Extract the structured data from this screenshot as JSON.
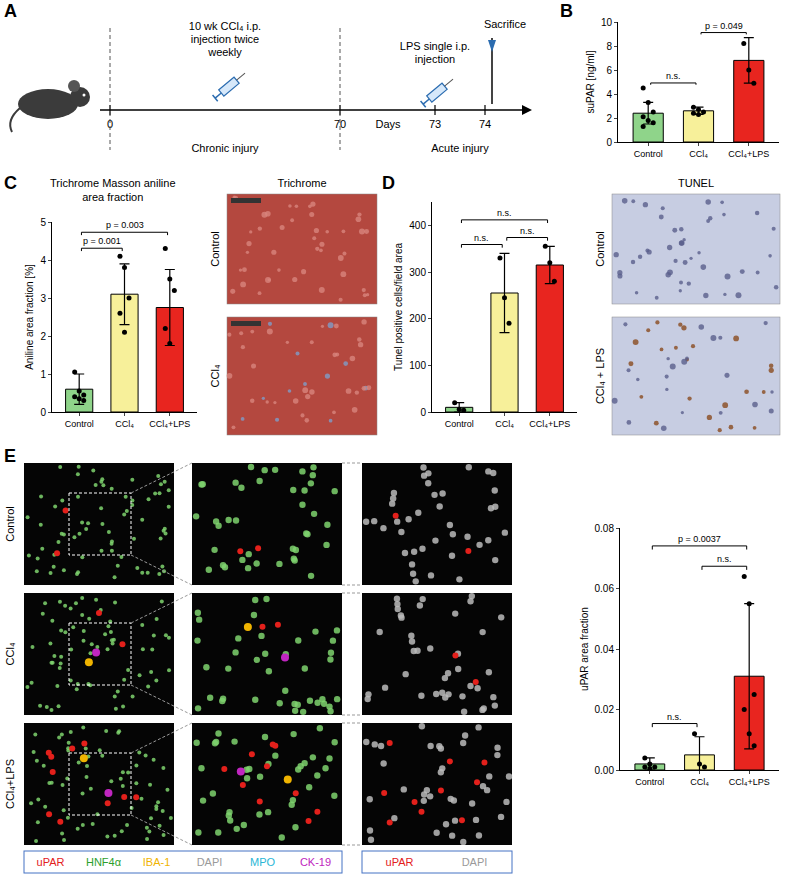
{
  "timeline": {
    "letter": "A",
    "days": [
      0,
      70,
      73,
      74
    ],
    "axis_label": "Days",
    "phases": [
      "Chronic injury",
      "Acute injury"
    ],
    "events": [
      "10 wk CCl₄ i.p. injection twice weekly",
      "LPS single i.p. injection",
      "Sacrifice"
    ]
  },
  "chart_data": [
    {
      "letter": "B",
      "type": "bar",
      "categories": [
        "Control",
        "CCl₄",
        "CCl₄+LPS"
      ],
      "values": [
        2.4,
        2.6,
        6.8
      ],
      "error": [
        0.9,
        0.3,
        1.9
      ],
      "points": [
        [
          4.5,
          3.3,
          2.5,
          2.1,
          1.8,
          1.6,
          1.3
        ],
        [
          2.9,
          2.7,
          2.5,
          2.4,
          2.3
        ],
        [
          8.2,
          6.0,
          4.9
        ]
      ],
      "colors": [
        "#8fd48a",
        "#f7f09a",
        "#e8251f"
      ],
      "y_label": "suPAR [ng/ml]",
      "ylim": [
        0,
        10
      ],
      "yticks": [
        0,
        2,
        4,
        6,
        8,
        10
      ],
      "grid": false,
      "comparisons": [
        {
          "between": [
            "Control",
            "CCl₄"
          ],
          "label": "n.s."
        },
        {
          "between": [
            "CCl₄",
            "CCl₄+LPS"
          ],
          "label": "p = 0.049"
        }
      ]
    },
    {
      "letter": "C",
      "type": "bar",
      "title": "Trichrome Masson aniline area fraction",
      "categories": [
        "Control",
        "CCl₄",
        "CCl₄+LPS"
      ],
      "values": [
        0.6,
        3.1,
        2.75
      ],
      "error": [
        0.4,
        0.8,
        1.0
      ],
      "points": [
        [
          1.05,
          0.55,
          0.45,
          0.4,
          0.35,
          0.3
        ],
        [
          4.1,
          3.8,
          3.0,
          2.6,
          2.1
        ],
        [
          4.3,
          3.5,
          3.2,
          2.2,
          1.8
        ]
      ],
      "colors": [
        "#8fd48a",
        "#f7f09a",
        "#e8251f"
      ],
      "y_label": "Aniline area fraction [%]",
      "ylim": [
        0,
        5
      ],
      "yticks": [
        0,
        1,
        2,
        3,
        4,
        5
      ],
      "grid": false,
      "comparisons": [
        {
          "between": [
            "Control",
            "CCl₄"
          ],
          "label": "p = 0.001"
        },
        {
          "between": [
            "Control",
            "CCl₄+LPS"
          ],
          "label": "p = 0.003"
        }
      ]
    },
    {
      "letter": "D",
      "type": "bar",
      "categories": [
        "Control",
        "CCl₄",
        "CCl₄+LPS"
      ],
      "values": [
        10,
        255,
        315
      ],
      "error": [
        10,
        85,
        40
      ],
      "points": [
        [
          20,
          6,
          4
        ],
        [
          330,
          245,
          190
        ],
        [
          355,
          320,
          280
        ]
      ],
      "colors": [
        "#8fd48a",
        "#f7f09a",
        "#e8251f"
      ],
      "y_label": "Tunel positive cells/field area",
      "ylim": [
        0,
        450
      ],
      "yticks": [
        0,
        100,
        200,
        300,
        400
      ],
      "grid": false,
      "comparisons": [
        {
          "between": [
            "Control",
            "CCl₄"
          ],
          "label": "n.s."
        },
        {
          "between": [
            "CCl₄",
            "CCl₄+LPS"
          ],
          "label": "n.s."
        },
        {
          "between": [
            "Control",
            "CCl₄+LPS"
          ],
          "label": "n.s."
        }
      ]
    },
    {
      "letter": "E",
      "type": "bar",
      "categories": [
        "Control",
        "CCl₄",
        "CCl₄+LPS"
      ],
      "values": [
        0.002,
        0.005,
        0.031
      ],
      "error": [
        0.002,
        0.006,
        0.024
      ],
      "points": [
        [
          0.004,
          0.002,
          0.001,
          0.001,
          0.0005
        ],
        [
          0.012,
          0.002,
          0.001
        ],
        [
          0.064,
          0.055,
          0.025,
          0.02,
          0.012,
          0.008
        ]
      ],
      "colors": [
        "#8fd48a",
        "#f7f09a",
        "#e8251f"
      ],
      "y_label": "uPAR area fraction",
      "ylim": [
        0,
        0.08
      ],
      "yticks": [
        {
          "value": 0,
          "label": "0.00"
        },
        {
          "value": 0.02,
          "label": "0.02"
        },
        {
          "value": 0.04,
          "label": "0.04"
        },
        {
          "value": 0.06,
          "label": "0.06"
        },
        {
          "value": 0.08,
          "label": "0.08"
        }
      ],
      "grid": false,
      "comparisons": [
        {
          "between": [
            "Control",
            "CCl₄"
          ],
          "label": "n.s."
        },
        {
          "between": [
            "CCl₄",
            "CCl₄+LPS"
          ],
          "label": "n.s."
        },
        {
          "between": [
            "Control",
            "CCl₄+LPS"
          ],
          "label": "p = 0.0037"
        }
      ]
    }
  ],
  "image_panels": [
    {
      "title": "Trichrome",
      "rows": [
        "Control",
        "CCl₄"
      ]
    },
    {
      "title": "TUNEL",
      "rows": [
        "Control",
        "CCl₄ + LPS"
      ]
    }
  ],
  "multiplex": {
    "rows": [
      "Control",
      "CCl₄",
      "CCl₄+LPS"
    ],
    "legends": [
      [
        {
          "text": "uPAR",
          "color": "#e3201b"
        },
        {
          "text": "HNF4α",
          "color": "#2ca02c"
        },
        {
          "text": "IBA-1",
          "color": "#f0b400"
        },
        {
          "text": "DAPI",
          "color": "#9a9a9a"
        },
        {
          "text": "MPO",
          "color": "#29b6d6"
        },
        {
          "text": "CK-19",
          "color": "#c026c0"
        }
      ],
      [
        {
          "text": "uPAR",
          "color": "#e3201b"
        },
        {
          "text": "DAPI",
          "color": "#9a9a9a"
        }
      ]
    ]
  }
}
